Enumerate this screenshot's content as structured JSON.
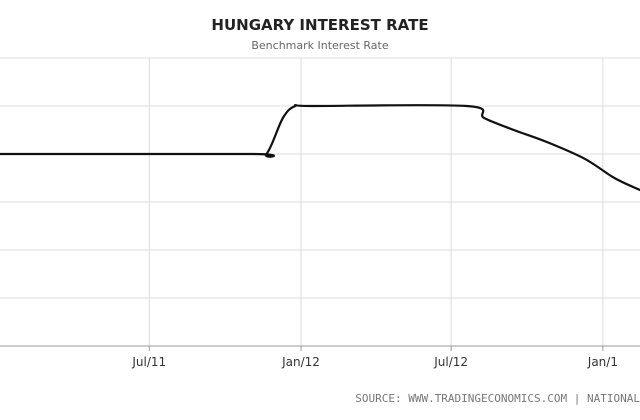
{
  "chart_data": {
    "type": "line",
    "title": "HUNGARY INTEREST RATE",
    "subtitle": "Benchmark Interest Rate",
    "xlabel": "",
    "ylabel": "",
    "x_ticks": [
      "Jul/11",
      "Jan/12",
      "Jul/12",
      "Jan/1"
    ],
    "x_range": [
      "2011-01-01",
      "2013-02-15"
    ],
    "y_range": [
      0,
      7
    ],
    "grid": true,
    "series": [
      {
        "points": [
          {
            "x": "2011-01-01",
            "y": 6.0
          },
          {
            "x": "2011-11-01",
            "y": 6.0
          },
          {
            "x": "2011-11-20",
            "y": 6.0
          },
          {
            "x": "2011-12-10",
            "y": 6.75
          },
          {
            "x": "2011-12-25",
            "y": 7.0
          },
          {
            "x": "2012-01-15",
            "y": 7.0
          },
          {
            "x": "2012-07-20",
            "y": 7.0
          },
          {
            "x": "2012-08-10",
            "y": 6.75
          },
          {
            "x": "2012-09-15",
            "y": 6.5
          },
          {
            "x": "2012-10-25",
            "y": 6.25
          },
          {
            "x": "2012-12-10",
            "y": 5.9
          },
          {
            "x": "2013-01-15",
            "y": 5.5
          },
          {
            "x": "2013-02-15",
            "y": 5.25
          }
        ],
        "color": "#111111"
      }
    ],
    "source_text": "SOURCE: WWW.TRADINGECONOMICS.COM | NATIONAL"
  }
}
